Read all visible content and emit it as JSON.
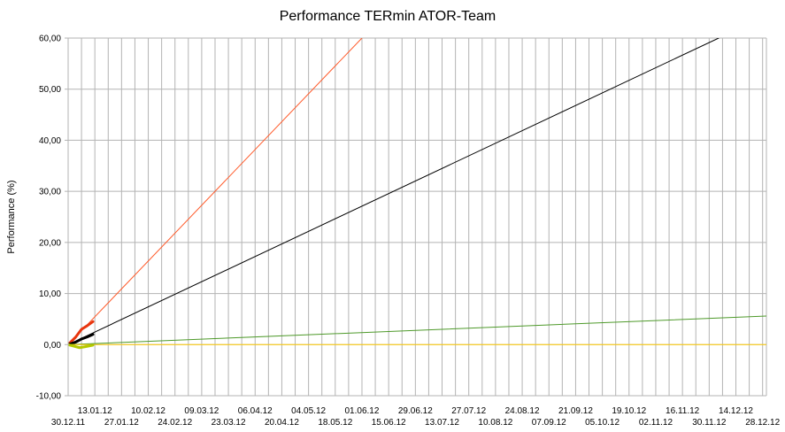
{
  "chart_data": {
    "type": "line",
    "title": "Performance TERmin ATOR-Team",
    "xlabel": "",
    "ylabel": "Performance (%)",
    "ylim": [
      -10,
      60
    ],
    "y_ticks": [
      -10,
      0,
      10,
      20,
      30,
      40,
      50,
      60
    ],
    "y_tick_labels": [
      "-10,00",
      "0,00",
      "10,00",
      "20,00",
      "30,00",
      "40,00",
      "50,00",
      "60,00"
    ],
    "x_axis": "date",
    "xlim": [
      "2011-12-30",
      "2012-12-30"
    ],
    "x_tick_labels_row1": [
      "13.01.12",
      "10.02.12",
      "09.03.12",
      "06.04.12",
      "04.05.12",
      "01.06.12",
      "29.06.12",
      "27.07.12",
      "24.08.12",
      "21.09.12",
      "19.10.12",
      "16.11.12",
      "14.12.12"
    ],
    "x_tick_labels_row2": [
      "30.12.11",
      "27.01.12",
      "24.02.12",
      "23.03.12",
      "20.04.12",
      "18.05.12",
      "15.06.12",
      "13.07.12",
      "10.08.12",
      "07.09.12",
      "05.10.12",
      "02.11.12",
      "30.11.12",
      "28.12.12"
    ],
    "vertical_grid": "every 7 days",
    "horizontal_grid": true,
    "legend": "none",
    "series": [
      {
        "color": "#ff5a2a",
        "style": "thin",
        "x": [
          "2011-12-30",
          "2012-06-01"
        ],
        "values": [
          0.0,
          60.0
        ]
      },
      {
        "color": "#e8350e",
        "style": "thick",
        "x": [
          "2011-12-30",
          "2012-01-03",
          "2012-01-06",
          "2012-01-09",
          "2012-01-12"
        ],
        "values": [
          0.0,
          1.5,
          3.0,
          3.7,
          4.5
        ]
      },
      {
        "color": "#000000",
        "style": "thin",
        "x": [
          "2011-12-30",
          "2012-12-05"
        ],
        "values": [
          0.0,
          60.0
        ]
      },
      {
        "color": "#000000",
        "style": "thick",
        "x": [
          "2011-12-30",
          "2012-01-03",
          "2012-01-06",
          "2012-01-09",
          "2012-01-12"
        ],
        "values": [
          0.0,
          0.5,
          1.1,
          1.5,
          2.0
        ]
      },
      {
        "color": "#4e9a2a",
        "style": "thin",
        "x": [
          "2011-12-30",
          "2012-12-30"
        ],
        "values": [
          0.0,
          5.6
        ]
      },
      {
        "color": "#ffcc00",
        "style": "thin",
        "x": [
          "2011-12-30",
          "2012-12-30"
        ],
        "values": [
          0.0,
          0.0
        ]
      },
      {
        "color": "#b3c800",
        "style": "thick",
        "x": [
          "2011-12-30",
          "2012-01-02",
          "2012-01-05",
          "2012-01-08",
          "2012-01-12"
        ],
        "values": [
          0.0,
          -0.3,
          -0.6,
          -0.4,
          -0.1
        ]
      }
    ]
  }
}
